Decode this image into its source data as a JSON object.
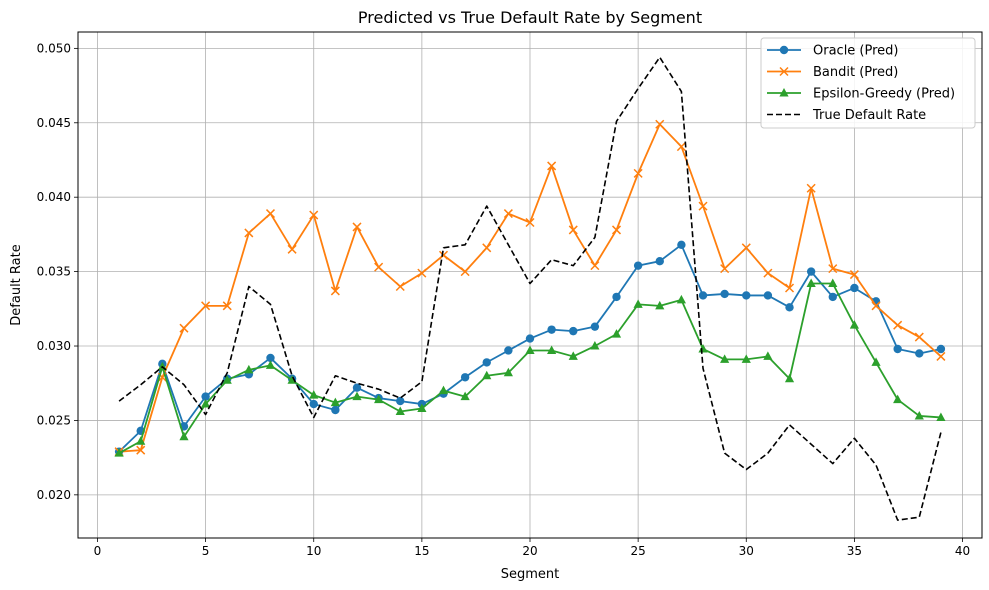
{
  "chart_data": {
    "type": "line",
    "title": "Predicted vs True Default Rate by Segment",
    "xlabel": "Segment",
    "ylabel": "Default Rate",
    "xlim": [
      -0.9,
      40.9
    ],
    "ylim": [
      0.0171,
      0.0511
    ],
    "xticks": [
      0,
      5,
      10,
      15,
      20,
      25,
      30,
      35,
      40
    ],
    "yticks": [
      0.02,
      0.025,
      0.03,
      0.035,
      0.04,
      0.045,
      0.05
    ],
    "xtick_labels": [
      "0",
      "5",
      "10",
      "15",
      "20",
      "25",
      "30",
      "35",
      "40"
    ],
    "ytick_labels": [
      "0.020",
      "0.025",
      "0.030",
      "0.035",
      "0.040",
      "0.045",
      "0.050"
    ],
    "grid": true,
    "legend_position": "top-right",
    "x": [
      1,
      2,
      3,
      4,
      5,
      6,
      7,
      8,
      9,
      10,
      11,
      12,
      13,
      14,
      15,
      16,
      17,
      18,
      19,
      20,
      21,
      22,
      23,
      24,
      25,
      26,
      27,
      28,
      29,
      30,
      31,
      32,
      33,
      34,
      35,
      36,
      37,
      38,
      39
    ],
    "series": [
      {
        "name": "Oracle (Pred)",
        "color": "#1f77b4",
        "marker": "circle",
        "linestyle": "solid",
        "values": [
          0.0229,
          0.0243,
          0.0288,
          0.0246,
          0.0266,
          0.0278,
          0.0281,
          0.0292,
          0.0278,
          0.0261,
          0.0257,
          0.0272,
          0.0265,
          0.0263,
          0.0261,
          0.0268,
          0.0279,
          0.0289,
          0.0297,
          0.0305,
          0.0311,
          0.031,
          0.0313,
          0.0333,
          0.0354,
          0.0357,
          0.0368,
          0.0334,
          0.0335,
          0.0334,
          0.0334,
          0.0326,
          0.035,
          0.0333,
          0.0339,
          0.033,
          0.0298,
          0.0295,
          0.0298
        ]
      },
      {
        "name": "Bandit (Pred)",
        "color": "#ff7f0e",
        "marker": "x",
        "linestyle": "solid",
        "values": [
          0.0229,
          0.023,
          0.0279,
          0.0312,
          0.0327,
          0.0327,
          0.0376,
          0.0389,
          0.0365,
          0.0388,
          0.0337,
          0.038,
          0.0353,
          0.034,
          0.0349,
          0.0361,
          0.035,
          0.0366,
          0.0389,
          0.0383,
          0.0421,
          0.0378,
          0.0354,
          0.0378,
          0.0416,
          0.0449,
          0.0434,
          0.0394,
          0.0352,
          0.0366,
          0.0349,
          0.0339,
          0.0406,
          0.0352,
          0.0348,
          0.0327,
          0.0314,
          0.0306,
          0.0293
        ]
      },
      {
        "name": "Epsilon-Greedy (Pred)",
        "color": "#2ca02c",
        "marker": "triangle",
        "linestyle": "solid",
        "values": [
          0.0228,
          0.0236,
          0.0286,
          0.0239,
          0.0261,
          0.0277,
          0.0284,
          0.0287,
          0.0277,
          0.0267,
          0.0262,
          0.0266,
          0.0264,
          0.0256,
          0.0258,
          0.027,
          0.0266,
          0.028,
          0.0282,
          0.0297,
          0.0297,
          0.0293,
          0.03,
          0.0308,
          0.0328,
          0.0327,
          0.0331,
          0.0298,
          0.0291,
          0.0291,
          0.0293,
          0.0278,
          0.0342,
          0.0342,
          0.0314,
          0.0289,
          0.0264,
          0.0253,
          0.0252
        ]
      },
      {
        "name": "True Default Rate",
        "color": "#000000",
        "marker": "none",
        "linestyle": "dashed",
        "values": [
          0.0263,
          0.0274,
          0.0286,
          0.0274,
          0.0254,
          0.0282,
          0.034,
          0.0328,
          0.028,
          0.0252,
          0.028,
          0.0275,
          0.0271,
          0.0265,
          0.0276,
          0.0366,
          0.0368,
          0.0394,
          0.0368,
          0.0342,
          0.0358,
          0.0354,
          0.0373,
          0.0451,
          0.0473,
          0.0494,
          0.0471,
          0.0285,
          0.0228,
          0.0217,
          0.0228,
          0.0247,
          0.0234,
          0.0221,
          0.0238,
          0.022,
          0.0183,
          0.0185,
          0.0242
        ]
      }
    ]
  }
}
